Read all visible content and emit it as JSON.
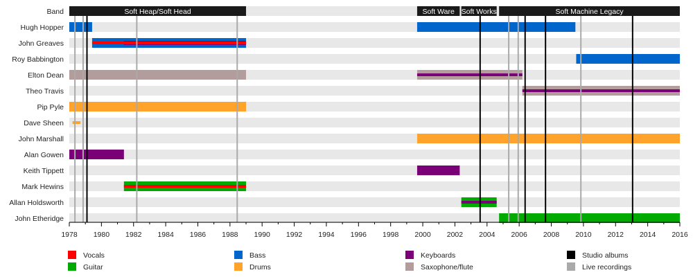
{
  "chart_data": {
    "type": "timeline",
    "xlim": [
      1978,
      2016
    ],
    "x_ticks": [
      1978,
      1980,
      1982,
      1984,
      1986,
      1988,
      1990,
      1992,
      1994,
      1996,
      1998,
      2000,
      2002,
      2004,
      2006,
      2008,
      2010,
      2012,
      2014,
      2016
    ],
    "rows": [
      "Band",
      "Hugh Hopper",
      "John Greaves",
      "Roy Babbington",
      "Elton Dean",
      "Theo Travis",
      "Pip Pyle",
      "Dave Sheen",
      "John Marshall",
      "Alan Gowen",
      "Keith Tippett",
      "Mark Hewins",
      "Allan Holdsworth",
      "John Etheridge"
    ],
    "bands": [
      {
        "label": "Soft Heap/Soft Head",
        "start": 1978,
        "end": 1989.0
      },
      {
        "label": "Soft Ware",
        "start": 1999.65,
        "end": 2002.3
      },
      {
        "label": "Soft Works",
        "start": 2002.4,
        "end": 2004.6
      },
      {
        "label": "Soft Machine Legacy",
        "start": 2004.75,
        "end": 2016
      }
    ],
    "roles": {
      "Vocals": "#ff0000",
      "Guitar": "#00aa00",
      "Bass": "#0066cc",
      "Drums": "#ffa32a",
      "Keyboards": "#7a0077",
      "Saxophone/flute": "#b39c9c",
      "Studio albums": "#000000",
      "Live recordings": "#aaaaaa"
    },
    "bars": [
      {
        "member": "Hugh Hopper",
        "role": "Bass",
        "start": 1978,
        "end": 1979.42,
        "layer": "main"
      },
      {
        "member": "Hugh Hopper",
        "role": "Bass",
        "start": 1999.65,
        "end": 2009.5,
        "layer": "main"
      },
      {
        "member": "John Greaves",
        "role": "Bass",
        "start": 1979.42,
        "end": 1989.0,
        "layer": "main"
      },
      {
        "member": "John Greaves",
        "role": "Keyboards",
        "start": 1981.4,
        "end": 1989.0,
        "layer": "mid"
      },
      {
        "member": "John Greaves",
        "role": "Vocals",
        "start": 1979.42,
        "end": 1989.0,
        "layer": "inner"
      },
      {
        "member": "Roy Babbington",
        "role": "Bass",
        "start": 2009.55,
        "end": 2016,
        "layer": "main"
      },
      {
        "member": "Elton Dean",
        "role": "Saxophone/flute",
        "start": 1978,
        "end": 1989.0,
        "layer": "main"
      },
      {
        "member": "Elton Dean",
        "role": "Saxophone/flute",
        "start": 1999.65,
        "end": 2006.2,
        "layer": "main"
      },
      {
        "member": "Elton Dean",
        "role": "Keyboards",
        "start": 1999.65,
        "end": 2006.2,
        "layer": "inner"
      },
      {
        "member": "Theo Travis",
        "role": "Saxophone/flute",
        "start": 2006.2,
        "end": 2016,
        "layer": "main"
      },
      {
        "member": "Theo Travis",
        "role": "Keyboards",
        "start": 2006.2,
        "end": 2016,
        "layer": "inner"
      },
      {
        "member": "Pip Pyle",
        "role": "Drums",
        "start": 1978,
        "end": 1989.0,
        "layer": "main"
      },
      {
        "member": "Dave Sheen",
        "role": "Drums",
        "start": 1978.2,
        "end": 1978.7,
        "layer": "thin"
      },
      {
        "member": "John Marshall",
        "role": "Drums",
        "start": 1999.65,
        "end": 2016,
        "layer": "main"
      },
      {
        "member": "Alan Gowen",
        "role": "Keyboards",
        "start": 1978,
        "end": 1981.4,
        "layer": "main"
      },
      {
        "member": "Keith Tippett",
        "role": "Keyboards",
        "start": 1999.65,
        "end": 2002.3,
        "layer": "main"
      },
      {
        "member": "Mark Hewins",
        "role": "Guitar",
        "start": 1981.4,
        "end": 1989.0,
        "layer": "main"
      },
      {
        "member": "Mark Hewins",
        "role": "Vocals",
        "start": 1981.4,
        "end": 1989.0,
        "layer": "inner"
      },
      {
        "member": "Allan Holdsworth",
        "role": "Guitar",
        "start": 2002.4,
        "end": 2004.6,
        "layer": "main"
      },
      {
        "member": "Allan Holdsworth",
        "role": "Keyboards",
        "start": 2002.4,
        "end": 2004.6,
        "layer": "inner"
      },
      {
        "member": "John Etheridge",
        "role": "Guitar",
        "start": 2004.75,
        "end": 2016,
        "layer": "main"
      }
    ],
    "studio_albums": [
      1979.1,
      2003.57,
      2006.37,
      2007.64,
      2013.06
    ],
    "live_recordings": [
      1978.35,
      1978.86,
      1982.2,
      1988.45,
      2005.35,
      2005.94,
      2009.84
    ],
    "legend": [
      [
        "Vocals",
        "Guitar"
      ],
      [
        "Bass",
        "Drums"
      ],
      [
        "Keyboards",
        "Saxophone/flute"
      ],
      [
        "Studio albums",
        "Live recordings"
      ]
    ],
    "band_bar_color": "#1a1a1a",
    "stripe_color": "#e8e8e8"
  }
}
